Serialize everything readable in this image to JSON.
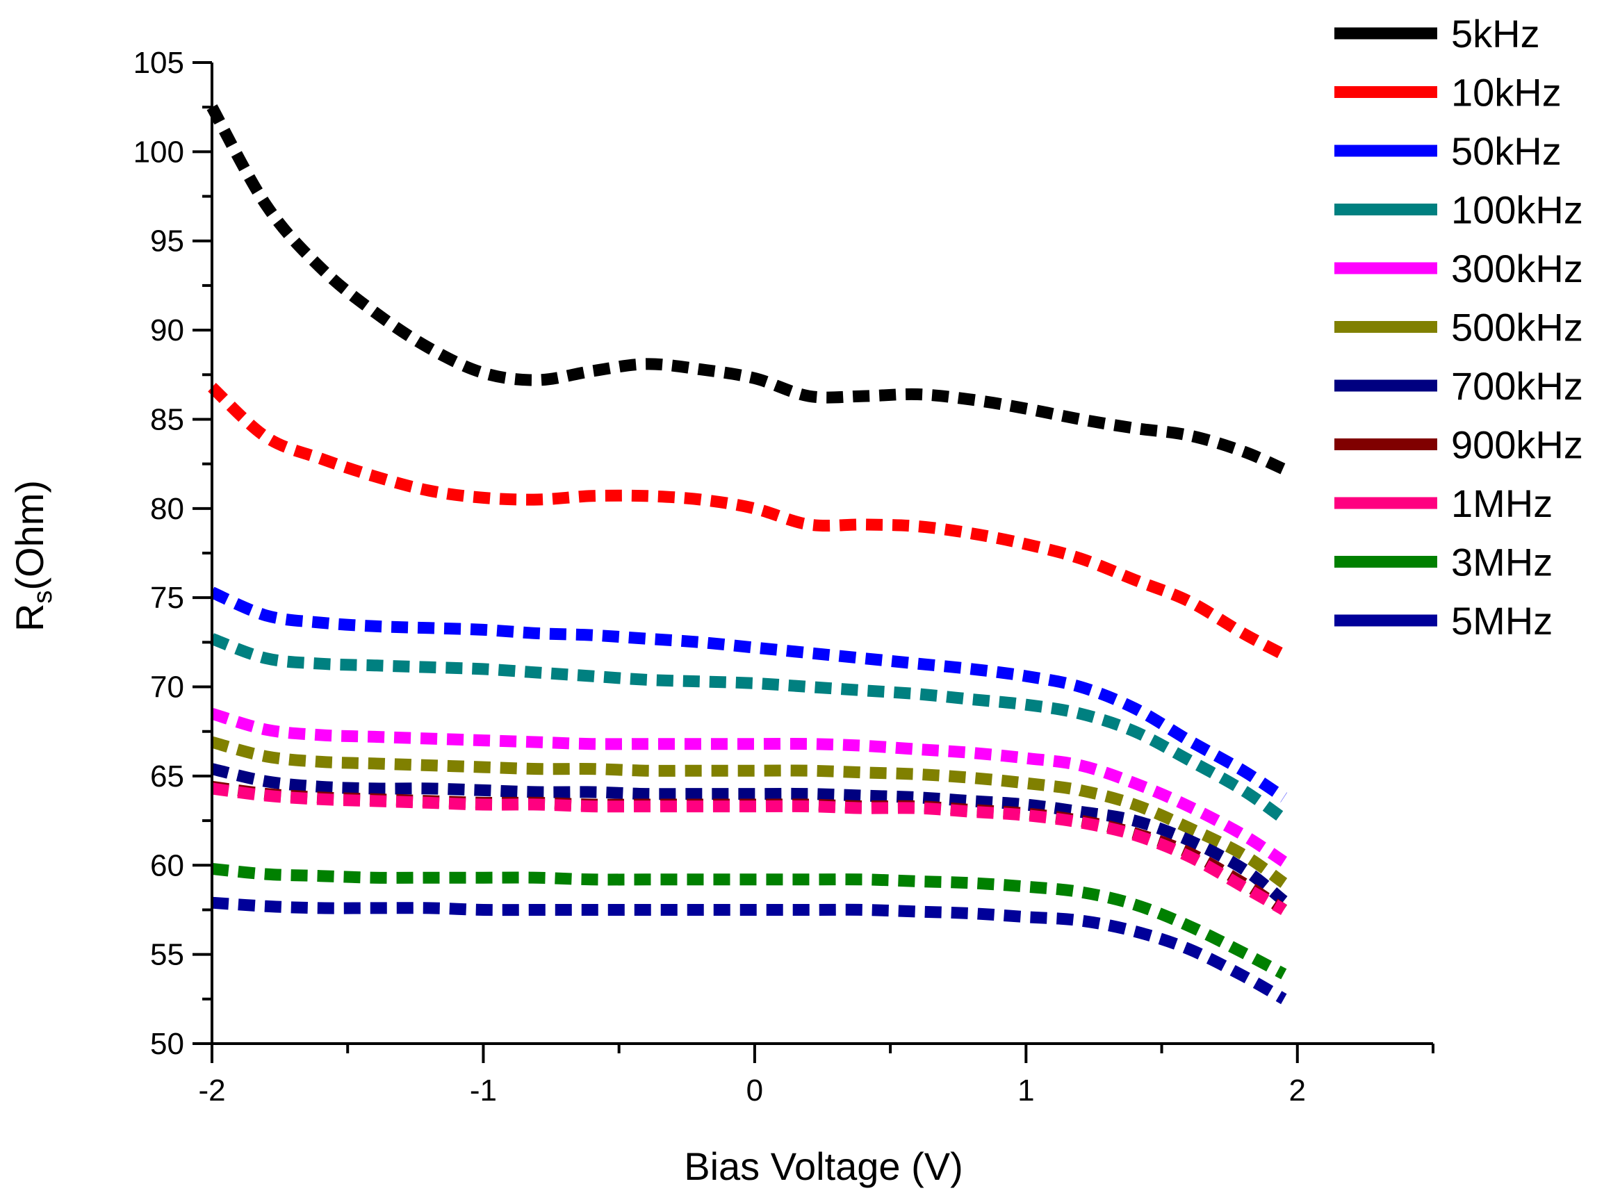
{
  "chart_data": {
    "type": "line",
    "title": "",
    "xlabel": "Bias Voltage (V)",
    "ylabel_main": "R",
    "ylabel_sub": "s",
    "ylabel_rest": "(Ohm)",
    "xlim": [
      -2,
      2.5
    ],
    "ylim": [
      50,
      105
    ],
    "xticks": [
      -2,
      -1,
      0,
      1,
      2
    ],
    "xtick_labels": [
      "-2",
      "-1",
      "0",
      "1",
      "2"
    ],
    "yticks": [
      50,
      55,
      60,
      65,
      70,
      75,
      80,
      85,
      90,
      95,
      100,
      105
    ],
    "ytick_labels": [
      "50",
      "55",
      "60",
      "65",
      "70",
      "75",
      "80",
      "85",
      "90",
      "95",
      "100",
      "105"
    ],
    "grid": false,
    "legend_position": "top-right",
    "x": [
      -2.0,
      -1.8,
      -1.6,
      -1.4,
      -1.2,
      -1.0,
      -0.8,
      -0.6,
      -0.4,
      -0.2,
      0.0,
      0.2,
      0.4,
      0.6,
      0.8,
      1.0,
      1.2,
      1.4,
      1.6,
      1.8,
      1.95
    ],
    "series": [
      {
        "name": "5kHz",
        "color": "#000000",
        "values": [
          102.5,
          97.0,
          93.5,
          91.0,
          89.0,
          87.6,
          87.2,
          87.7,
          88.1,
          87.8,
          87.3,
          86.3,
          86.3,
          86.4,
          86.1,
          85.6,
          85.0,
          84.5,
          84.1,
          83.2,
          82.2
        ]
      },
      {
        "name": "10kHz",
        "color": "#ff0000",
        "values": [
          86.8,
          84.0,
          82.8,
          81.8,
          81.0,
          80.6,
          80.5,
          80.7,
          80.7,
          80.5,
          80.0,
          79.1,
          79.1,
          79.0,
          78.6,
          78.0,
          77.2,
          76.0,
          74.8,
          73.0,
          71.8
        ]
      },
      {
        "name": "50kHz",
        "color": "#0000ff",
        "values": [
          75.3,
          74.0,
          73.6,
          73.4,
          73.3,
          73.2,
          73.0,
          72.9,
          72.7,
          72.5,
          72.2,
          71.9,
          71.6,
          71.3,
          71.0,
          70.6,
          70.0,
          68.8,
          67.0,
          65.3,
          63.8
        ]
      },
      {
        "name": "100kHz",
        "color": "#008080",
        "values": [
          72.7,
          71.6,
          71.3,
          71.2,
          71.1,
          71.0,
          70.8,
          70.6,
          70.4,
          70.3,
          70.2,
          70.0,
          69.8,
          69.6,
          69.3,
          69.0,
          68.5,
          67.5,
          65.9,
          64.2,
          62.6
        ]
      },
      {
        "name": "300kHz",
        "color": "#ff00ff",
        "values": [
          68.5,
          67.6,
          67.3,
          67.2,
          67.1,
          67.0,
          66.9,
          66.8,
          66.8,
          66.8,
          66.8,
          66.8,
          66.7,
          66.5,
          66.3,
          66.0,
          65.6,
          64.6,
          63.3,
          61.7,
          60.2
        ]
      },
      {
        "name": "500kHz",
        "color": "#808000",
        "values": [
          66.9,
          66.1,
          65.8,
          65.7,
          65.6,
          65.5,
          65.4,
          65.4,
          65.3,
          65.3,
          65.3,
          65.3,
          65.2,
          65.1,
          64.9,
          64.6,
          64.2,
          63.4,
          62.1,
          60.6,
          59.0
        ]
      },
      {
        "name": "700kHz",
        "color": "#000080",
        "values": [
          65.4,
          64.7,
          64.4,
          64.3,
          64.3,
          64.2,
          64.1,
          64.1,
          64.0,
          64.0,
          64.0,
          64.0,
          63.9,
          63.8,
          63.6,
          63.4,
          63.0,
          62.5,
          61.4,
          59.8,
          58.0
        ]
      },
      {
        "name": "900kHz",
        "color": "#800000",
        "values": [
          64.4,
          64.0,
          63.8,
          63.7,
          63.6,
          63.5,
          63.5,
          63.4,
          63.4,
          63.4,
          63.4,
          63.4,
          63.3,
          63.3,
          63.1,
          62.9,
          62.5,
          61.8,
          60.7,
          59.0,
          57.5
        ]
      },
      {
        "name": "1MHz",
        "color": "#ff0080",
        "values": [
          64.3,
          63.9,
          63.7,
          63.6,
          63.5,
          63.4,
          63.4,
          63.3,
          63.3,
          63.3,
          63.3,
          63.3,
          63.2,
          63.2,
          63.0,
          62.8,
          62.4,
          61.7,
          60.5,
          58.8,
          57.5
        ]
      },
      {
        "name": "3MHz",
        "color": "#008000",
        "values": [
          59.8,
          59.5,
          59.4,
          59.3,
          59.3,
          59.3,
          59.3,
          59.2,
          59.2,
          59.2,
          59.2,
          59.2,
          59.2,
          59.1,
          59.0,
          58.8,
          58.5,
          57.8,
          56.6,
          55.1,
          53.9
        ]
      },
      {
        "name": "5MHz",
        "color": "#000099",
        "values": [
          57.9,
          57.7,
          57.6,
          57.6,
          57.6,
          57.5,
          57.5,
          57.5,
          57.5,
          57.5,
          57.5,
          57.5,
          57.5,
          57.4,
          57.3,
          57.1,
          56.9,
          56.3,
          55.3,
          53.8,
          52.5
        ]
      }
    ]
  }
}
